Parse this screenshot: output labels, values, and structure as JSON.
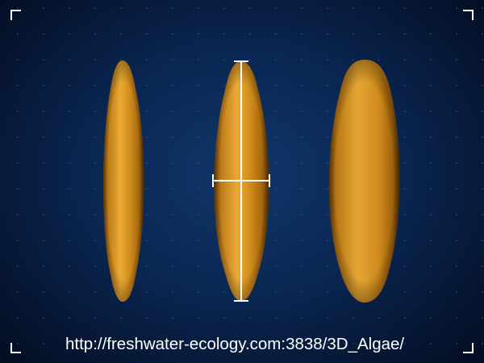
{
  "source": {
    "url_text": "http://freshwater-ecology.com:3838/3D_Algae/"
  },
  "scene": {
    "models": [
      {
        "name": "cell-side-view",
        "shape": "spindle",
        "fill": "#d08a1e"
      },
      {
        "name": "cell-front-view-measured",
        "shape": "spindle",
        "fill": "#d08a1e"
      },
      {
        "name": "cell-top-view",
        "shape": "elliptic",
        "fill": "#d08a1e"
      }
    ],
    "measure_marks": {
      "axes": [
        "length",
        "width"
      ],
      "color": "#ffffff"
    }
  },
  "colors": {
    "background_center": "#103769",
    "background_edge": "#030c22",
    "grid_dot": "#4f6f9f",
    "cell_highlight": "#f2b64a",
    "cell_mid": "#d08a1e",
    "cell_shadow": "#6a3f06",
    "ui_marks": "#ffffff"
  },
  "icons": {
    "frame_corners": [
      "corner-bracket-top-left-icon",
      "corner-bracket-top-right-icon",
      "corner-bracket-bottom-left-icon",
      "corner-bracket-bottom-right-icon"
    ]
  }
}
